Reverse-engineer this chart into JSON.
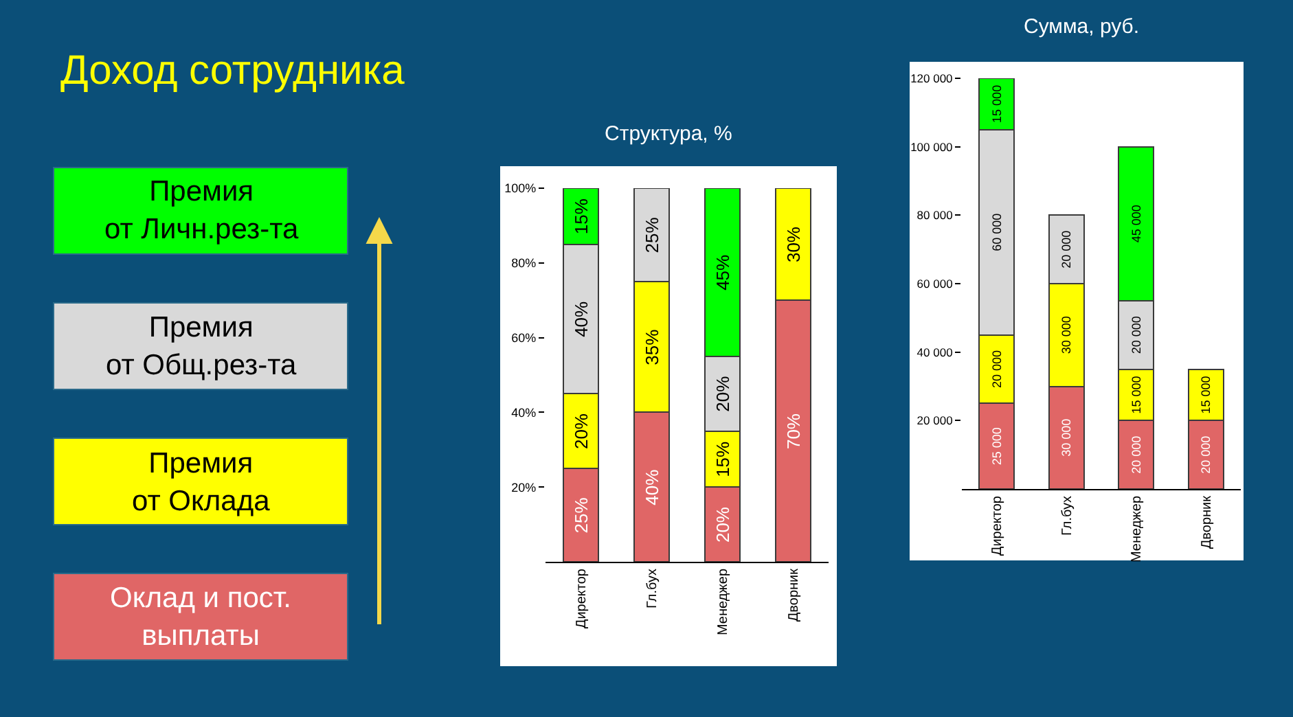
{
  "chart_data": [
    {
      "type": "bar",
      "title": "Структура, %",
      "annotations": [
        "Доход сотрудника"
      ],
      "categories": [
        "Директор",
        "Гл.бух",
        "Менеджер",
        "Дворник"
      ],
      "stacked": true,
      "legend": "left",
      "series": [
        {
          "name": "Оклад и пост.\nвыплаты",
          "color": "#e06666",
          "values": [
            25,
            40,
            20,
            70
          ],
          "value_labels": [
            "25%",
            "40%",
            "20%",
            "70%"
          ]
        },
        {
          "name": "Премия\nот Оклада",
          "color": "#ffff00",
          "values": [
            20,
            35,
            15,
            30
          ],
          "value_labels": [
            "20%",
            "35%",
            "15%",
            "30%"
          ]
        },
        {
          "name": "Премия\nот Общ.рез-та",
          "color": "#d9d9d9",
          "values": [
            40,
            25,
            20,
            null
          ],
          "value_labels": [
            "40%",
            "25%",
            "20%",
            null
          ]
        },
        {
          "name": "Премия\nот Личн.рез-та",
          "color": "#00ff00",
          "values": [
            15,
            null,
            45,
            null
          ],
          "value_labels": [
            "15%",
            null,
            "45%",
            null
          ]
        }
      ],
      "ylim": [
        0,
        100
      ],
      "yticks": [
        {
          "value": 20,
          "label": "20%"
        },
        {
          "value": 40,
          "label": "40%"
        },
        {
          "value": 60,
          "label": "60%"
        },
        {
          "value": 80,
          "label": "80%"
        },
        {
          "value": 100,
          "label": "100%"
        }
      ]
    },
    {
      "type": "bar",
      "title": "Сумма, руб.",
      "categories": [
        "Директор",
        "Гл.бух",
        "Менеджер",
        "Дворник"
      ],
      "stacked": true,
      "series": [
        {
          "color": "#e06666",
          "values": [
            25000,
            30000,
            20000,
            20000
          ],
          "value_labels": [
            "25 000",
            "30 000",
            "20 000",
            "20 000"
          ]
        },
        {
          "color": "#ffff00",
          "values": [
            20000,
            30000,
            15000,
            15000
          ],
          "value_labels": [
            "20 000",
            "30 000",
            "15 000",
            "15 000"
          ]
        },
        {
          "color": "#d9d9d9",
          "values": [
            60000,
            20000,
            20000,
            null
          ],
          "value_labels": [
            "60 000",
            "20 000",
            "20 000",
            null
          ]
        },
        {
          "color": "#00ff00",
          "values": [
            15000,
            null,
            45000,
            null
          ],
          "value_labels": [
            "15 000",
            null,
            "45 000",
            null
          ]
        }
      ],
      "ylim": [
        0,
        120000
      ],
      "yticks": [
        {
          "value": 20000,
          "label": "20 000"
        },
        {
          "value": 40000,
          "label": "40 000"
        },
        {
          "value": 60000,
          "label": "60 000"
        },
        {
          "value": 80000,
          "label": "80 000"
        },
        {
          "value": 100000,
          "label": "100 000"
        },
        {
          "value": 120000,
          "label": "120 000"
        }
      ]
    }
  ]
}
